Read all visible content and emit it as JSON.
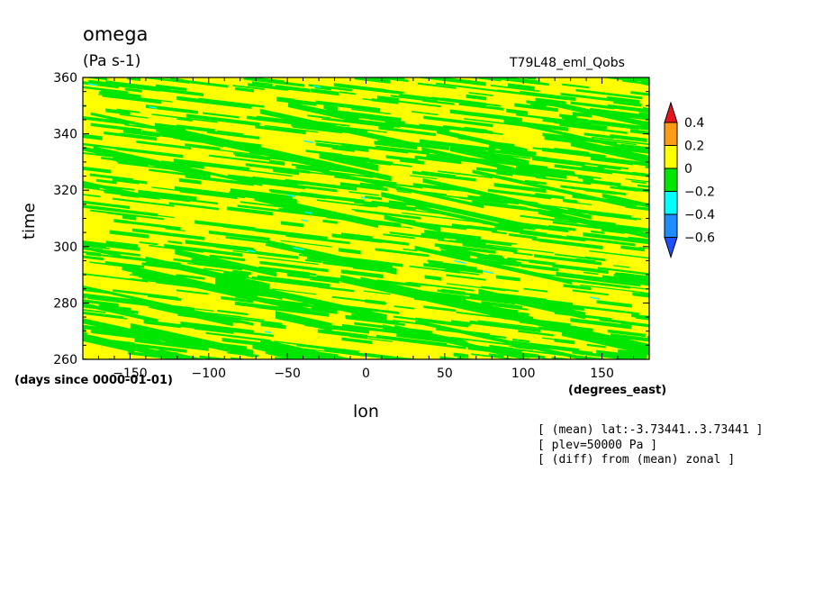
{
  "header": {
    "title": "omega",
    "units": "(Pa s-1)",
    "run_label": "T79L48_eml_Qobs"
  },
  "notes": [
    "[ (mean) lat:-3.73441..3.73441 ]",
    "[ plev=50000 Pa ]",
    "[ (diff) from (mean) zonal ]"
  ],
  "chart_data": {
    "type": "heatmap",
    "title": "omega",
    "units": "(Pa s-1)",
    "xlabel": "lon",
    "x_units": "(degrees_east)",
    "ylabel": "time",
    "y_units": "(days since 0000-01-01)",
    "xlim": [
      -180,
      180
    ],
    "ylim": [
      260,
      360
    ],
    "x_ticks": [
      -150,
      -100,
      -50,
      0,
      50,
      100,
      150
    ],
    "y_ticks": [
      260,
      280,
      300,
      320,
      340,
      360
    ],
    "colorbar": {
      "levels": [
        "0.4",
        "0.2",
        "0",
        "-0.2",
        "-0.4",
        "-0.6"
      ],
      "colors_top_to_bottom": [
        "#e8141c",
        "#ff9a14",
        "#ffff00",
        "#00e600",
        "#00ffff",
        "#1e8cff",
        "#1e50ff"
      ],
      "extend": "both"
    },
    "field_description": "Hovmoller of 500 hPa omega anomaly; dominated by values between -0.2 and 0.2 with streaks tilted westward in time, sparse patches below -0.2",
    "dominant_bins": [
      {
        "range": [
          0,
          0.2
        ],
        "color": "#ffff00"
      },
      {
        "range": [
          -0.2,
          0
        ],
        "color": "#00e600"
      },
      {
        "range": [
          -0.4,
          -0.2
        ],
        "color": "#00ffff"
      }
    ]
  }
}
